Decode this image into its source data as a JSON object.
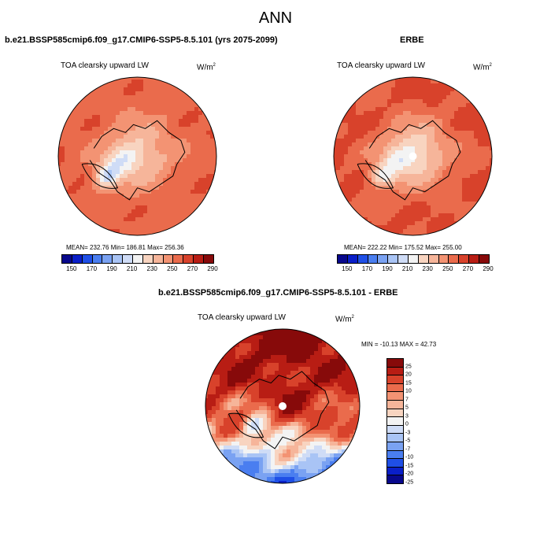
{
  "title": "ANN",
  "panels": [
    {
      "title": "b.e21.BSSP585cmip6.f09_g17.CMIP6-SSP5-8.5.101 (yrs 2075-2099)",
      "variable": "TOA clearsky upward LW",
      "units_base": "W/m",
      "units_exp": "2",
      "stats": "MEAN= 232.76   Min= 186.81   Max= 256.36",
      "field": "model"
    },
    {
      "title": "ERBE",
      "variable": "TOA clearsky upward LW",
      "units_base": "W/m",
      "units_exp": "2",
      "stats": "MEAN= 222.22   Min= 175.52   Max= 255.00",
      "field": "obs"
    },
    {
      "title": "b.e21.BSSP585cmip6.f09_g17.CMIP6-SSP5-8.5.101 - ERBE",
      "variable": "TOA clearsky upward LW",
      "units_base": "W/m",
      "units_exp": "2",
      "stats": "MIN = -10.13 MAX =  42.73",
      "field": "diff"
    }
  ],
  "colorbar_abs": {
    "colors": [
      "#08088c",
      "#0a1fc8",
      "#1f4fe6",
      "#4a7ef0",
      "#7aa2f2",
      "#a9c4f5",
      "#cfdcf6",
      "#f3f3f3",
      "#f8d4c0",
      "#f6b59a",
      "#f39373",
      "#ea6b4c",
      "#d8422b",
      "#b81d14",
      "#870a0a"
    ],
    "ticks": [
      "150",
      "170",
      "190",
      "210",
      "230",
      "250",
      "270",
      "290"
    ]
  },
  "colorbar_diff": {
    "colors": [
      "#870a0a",
      "#b81d14",
      "#d8422b",
      "#ea6b4c",
      "#f39373",
      "#f6b59a",
      "#f8d4c0",
      "#f3f3f3",
      "#cfdcf6",
      "#a9c4f5",
      "#7aa2f2",
      "#4a7ef0",
      "#1f4fe6",
      "#0a1fc8",
      "#08088c"
    ],
    "ticks": [
      "25",
      "20",
      "15",
      "10",
      "7",
      "5",
      "3",
      "0",
      "-3",
      "-5",
      "-7",
      "-10",
      "-15",
      "-20",
      "-25"
    ]
  }
}
